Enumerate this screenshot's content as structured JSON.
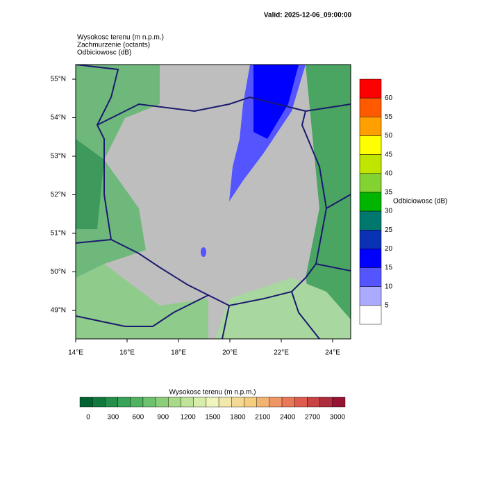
{
  "header": {
    "valid": "Valid: 2025-12-06_09:00:00",
    "lines": [
      "Wysokosc terenu   (m n.p.m.)",
      "Zachmurzenie   (octants)",
      "Odbiciowosc   (dB)"
    ]
  },
  "map": {
    "lat_labels": [
      "55°N",
      "54°N",
      "53°N",
      "52°N",
      "51°N",
      "50°N",
      "49°N"
    ],
    "lon_labels": [
      "14°E",
      "16°E",
      "18°E",
      "20°E",
      "22°E",
      "24°E"
    ]
  },
  "reflectivity_bar": {
    "title": "Odbiciowosc  (dB)",
    "labels": [
      60,
      55,
      50,
      45,
      40,
      35,
      30,
      25,
      20,
      15,
      10,
      5
    ],
    "colors": [
      "#ff0000",
      "#ff5a00",
      "#ffa000",
      "#ffff00",
      "#c0e600",
      "#82d232",
      "#00b400",
      "#00786e",
      "#0a32b4",
      "#0000ff",
      "#5555ff",
      "#aaaaff",
      "#ffffff"
    ]
  },
  "elevation_bar": {
    "title": "Wysokosc terenu  (m n.p.m.)",
    "labels": [
      0,
      300,
      600,
      900,
      1200,
      1500,
      1800,
      2100,
      2400,
      2700,
      3000
    ]
  }
}
